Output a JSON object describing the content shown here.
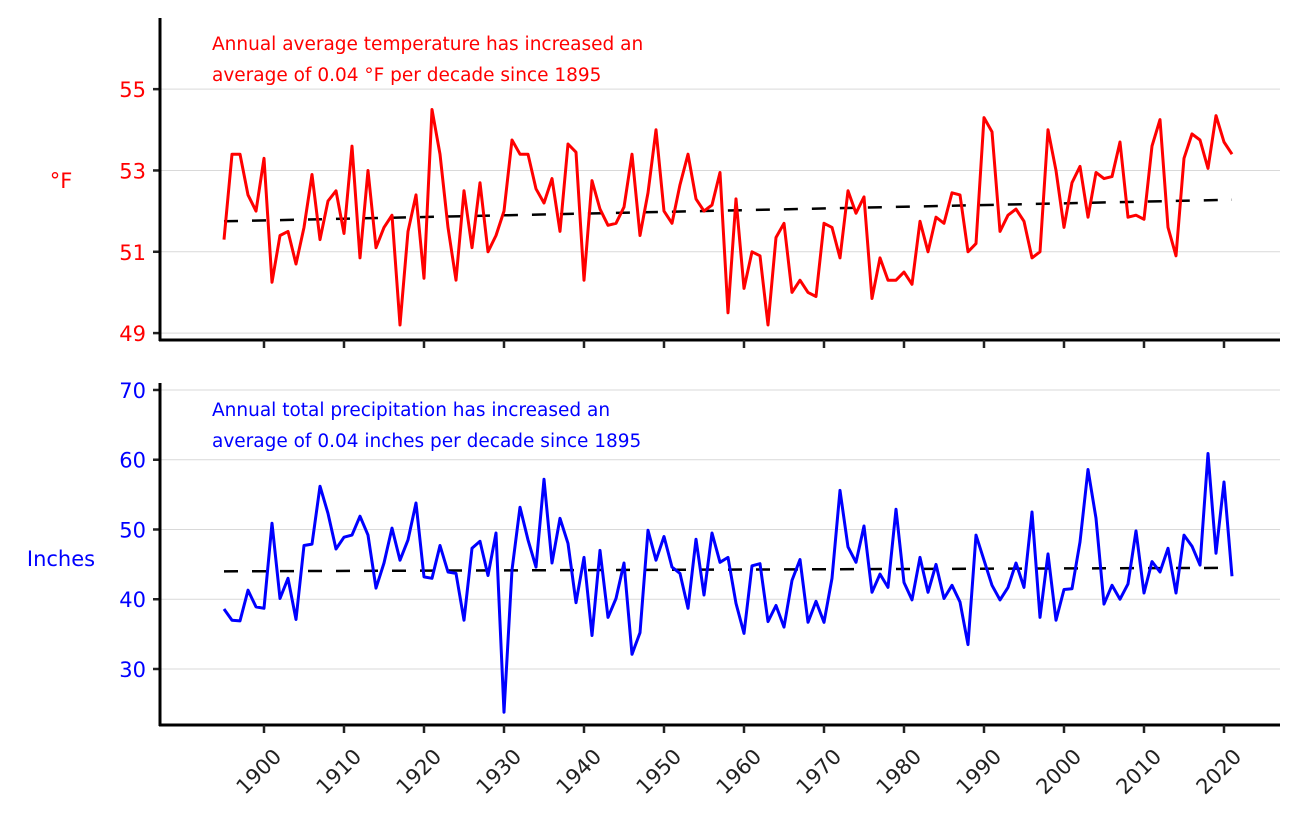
{
  "chart_data": [
    {
      "type": "line",
      "annotation": [
        "Annual average temperature has increased an",
        "average of 0.04 °F per decade since 1895"
      ],
      "xlabel": "",
      "ylabel": "°F",
      "color": "#ff0000",
      "trend_color": "#000000",
      "yticks": [
        49,
        51,
        53,
        55
      ],
      "ylim": [
        48.83,
        56.75
      ],
      "xlim": [
        1887,
        2027
      ],
      "xticks": [
        1900,
        1910,
        1920,
        1930,
        1940,
        1950,
        1960,
        1970,
        1980,
        1990,
        2000,
        2010,
        2020
      ],
      "grid": "horizontal",
      "x_start": 1895,
      "values": [
        51.3,
        53.4,
        53.4,
        52.4,
        52.0,
        53.3,
        50.25,
        51.4,
        51.5,
        50.7,
        51.6,
        52.9,
        51.3,
        52.25,
        52.5,
        51.45,
        53.6,
        50.85,
        53.0,
        51.1,
        51.6,
        51.9,
        49.2,
        51.5,
        52.4,
        50.35,
        54.5,
        53.4,
        51.6,
        50.3,
        52.5,
        51.1,
        52.7,
        51.0,
        51.4,
        52.0,
        53.75,
        53.4,
        53.4,
        52.55,
        52.2,
        52.8,
        51.5,
        53.65,
        53.45,
        50.3,
        52.75,
        52.05,
        51.65,
        51.7,
        52.1,
        53.4,
        51.4,
        52.45,
        54.0,
        52.0,
        51.7,
        52.65,
        53.4,
        52.3,
        52.0,
        52.15,
        52.95,
        49.5,
        52.3,
        50.1,
        51.0,
        50.9,
        49.2,
        51.35,
        51.7,
        50.0,
        50.3,
        50.0,
        49.9,
        51.7,
        51.6,
        50.85,
        52.5,
        51.95,
        52.35,
        49.85,
        50.85,
        50.3,
        50.3,
        50.5,
        50.2,
        51.75,
        51.0,
        51.85,
        51.7,
        52.45,
        52.4,
        51.0,
        51.2,
        54.3,
        53.95,
        51.5,
        51.9,
        52.05,
        51.75,
        50.85,
        51.0,
        54.0,
        53.0,
        51.6,
        52.7,
        53.1,
        51.85,
        52.95,
        52.8,
        52.85,
        53.7,
        51.85,
        51.9,
        51.8,
        53.6,
        54.25,
        51.6,
        50.9,
        53.3,
        53.9,
        53.75,
        53.05,
        54.35,
        53.7,
        53.4
      ],
      "trend": {
        "x": [
          1895,
          2021
        ],
        "y": [
          51.75,
          52.28
        ]
      }
    },
    {
      "type": "line",
      "annotation": [
        "Annual total precipitation has increased an",
        "average of 0.04 inches per decade since 1895"
      ],
      "xlabel": "",
      "ylabel": "Inches",
      "color": "#0000ff",
      "trend_color": "#000000",
      "yticks": [
        30,
        40,
        50,
        60,
        70
      ],
      "ylim": [
        21.97,
        71.0
      ],
      "xlim": [
        1887,
        2027
      ],
      "xticks": [
        1900,
        1910,
        1920,
        1930,
        1940,
        1950,
        1960,
        1970,
        1980,
        1990,
        2000,
        2010,
        2020
      ],
      "grid": "horizontal",
      "x_start": 1895,
      "values": [
        38.6,
        37.0,
        36.9,
        41.3,
        38.9,
        38.7,
        50.9,
        40.1,
        43.0,
        37.1,
        47.7,
        47.9,
        56.2,
        52.3,
        47.2,
        48.9,
        49.2,
        51.9,
        49.2,
        41.6,
        45.2,
        50.2,
        45.6,
        48.5,
        53.8,
        43.2,
        43.0,
        47.7,
        43.9,
        43.7,
        37.0,
        47.3,
        48.3,
        43.4,
        49.5,
        23.8,
        44.2,
        53.2,
        48.5,
        44.6,
        57.2,
        45.2,
        51.6,
        48.0,
        39.5,
        46.0,
        34.8,
        47.0,
        37.4,
        40.1,
        45.2,
        32.1,
        35.2,
        49.9,
        45.6,
        49.0,
        44.6,
        43.7,
        38.7,
        48.6,
        40.6,
        49.5,
        45.3,
        46.0,
        39.4,
        35.1,
        44.8,
        45.1,
        36.8,
        39.1,
        36.0,
        42.7,
        45.7,
        36.7,
        39.7,
        36.7,
        43.0,
        55.6,
        47.5,
        45.3,
        50.5,
        41.0,
        43.6,
        41.7,
        52.9,
        42.4,
        39.9,
        46.0,
        41.0,
        45.0,
        40.1,
        42.0,
        39.6,
        33.5,
        49.2,
        45.6,
        42.0,
        39.9,
        41.7,
        45.2,
        41.7,
        52.5,
        37.4,
        46.5,
        37.0,
        41.4,
        41.5,
        48.2,
        58.6,
        51.6,
        39.3,
        42.0,
        40.0,
        42.2,
        49.8,
        40.9,
        45.4,
        43.9,
        47.3,
        40.9,
        49.2,
        47.6,
        44.9,
        60.9,
        46.6,
        56.8,
        43.3
      ],
      "trend": {
        "x": [
          1895,
          2021
        ],
        "y": [
          44.0,
          44.5
        ]
      }
    }
  ]
}
